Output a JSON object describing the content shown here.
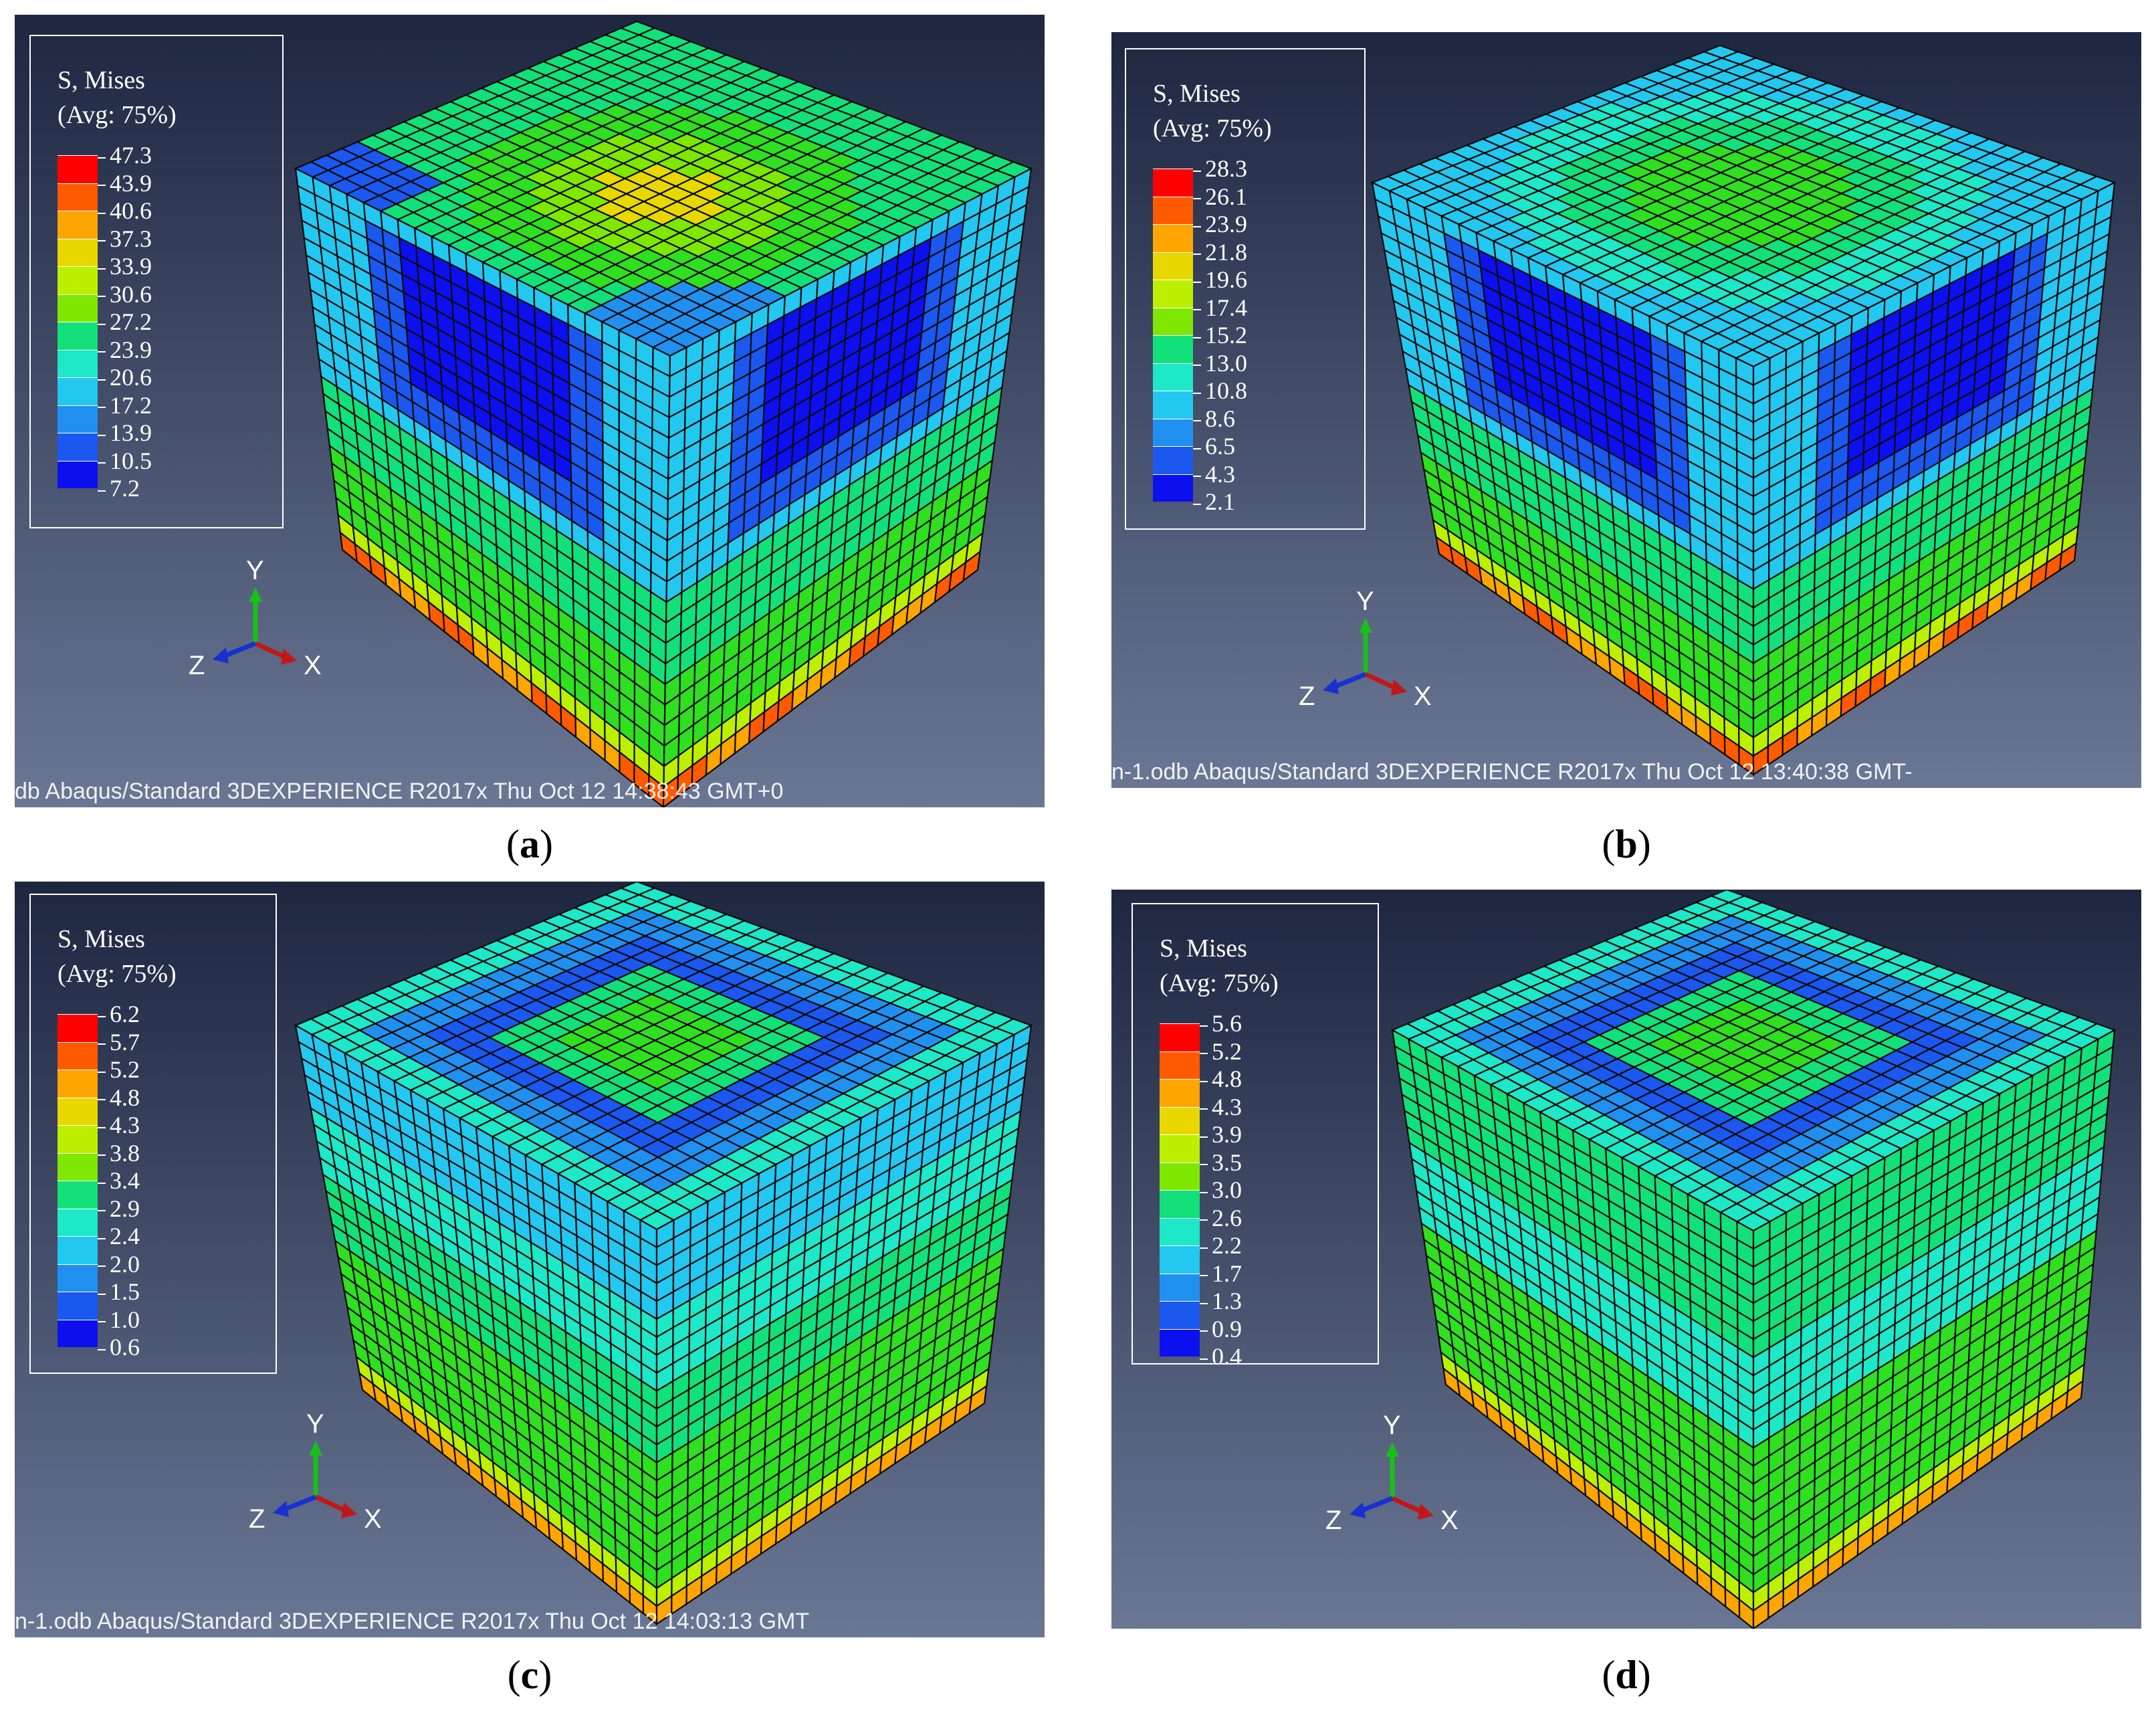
{
  "panels": [
    {
      "id": "a",
      "caption_letter": "a",
      "legend_title_1": "S, Mises",
      "legend_title_2": "(Avg: 75%)",
      "legend_values": [
        "47.3",
        "43.9",
        "40.6",
        "37.3",
        "33.9",
        "30.6",
        "27.2",
        "23.9",
        "20.6",
        "17.2",
        "13.9",
        "10.5",
        "7.2"
      ],
      "footer": "db   Abaqus/Standard 3DEXPERIENCE R2017x   Thu Oct 12 14:38:43 GMT+0",
      "axes": {
        "x": "X",
        "y": "Y",
        "z": "Z"
      },
      "top_pattern": "yellow-center",
      "side_pattern": "blue-windows"
    },
    {
      "id": "b",
      "caption_letter": "b",
      "legend_title_1": "S, Mises",
      "legend_title_2": "(Avg: 75%)",
      "legend_values": [
        "28.3",
        "26.1",
        "23.9",
        "21.8",
        "19.6",
        "17.4",
        "15.2",
        "13.0",
        "10.8",
        "8.6",
        "6.5",
        "4.3",
        "2.1"
      ],
      "footer": "n-1.odb   Abaqus/Standard 3DEXPERIENCE R2017x   Thu Oct 12 13:40:38 GMT-",
      "axes": {
        "x": "X",
        "y": "Y",
        "z": "Z"
      },
      "top_pattern": "green-center",
      "side_pattern": "blue-windows"
    },
    {
      "id": "c",
      "caption_letter": "c",
      "legend_title_1": "S, Mises",
      "legend_title_2": "(Avg: 75%)",
      "legend_values": [
        "6.2",
        "5.7",
        "5.2",
        "4.8",
        "4.3",
        "3.8",
        "3.4",
        "2.9",
        "2.4",
        "2.0",
        "1.5",
        "1.0",
        "0.6"
      ],
      "footer": "n-1.odb   Abaqus/Standard 3DEXPERIENCE R2017x   Thu Oct 12 14:03:13 GMT",
      "axes": {
        "x": "X",
        "y": "Y",
        "z": "Z"
      },
      "top_pattern": "blue-ring",
      "side_pattern": "cyan-green"
    },
    {
      "id": "d",
      "caption_letter": "d",
      "legend_title_1": "S, Mises",
      "legend_title_2": "(Avg: 75%)",
      "legend_values": [
        "5.6",
        "5.2",
        "4.8",
        "4.3",
        "3.9",
        "3.5",
        "3.0",
        "2.6",
        "2.2",
        "1.7",
        "1.3",
        "0.9",
        "0.4"
      ],
      "footer": "",
      "axes": {
        "x": "X",
        "y": "Y",
        "z": "Z"
      },
      "top_pattern": "blue-ring",
      "side_pattern": "green"
    }
  ],
  "colors": {
    "contour": [
      "#ff0000",
      "#ff5a00",
      "#ffa500",
      "#e8d800",
      "#bcf000",
      "#7ee800",
      "#2ee020",
      "#12e07a",
      "#1de8c8",
      "#22c8f0",
      "#2090f0",
      "#1a58f0",
      "#0c10ee"
    ],
    "bg_top": "#1e2640",
    "bg_bottom": "#6a7794"
  }
}
